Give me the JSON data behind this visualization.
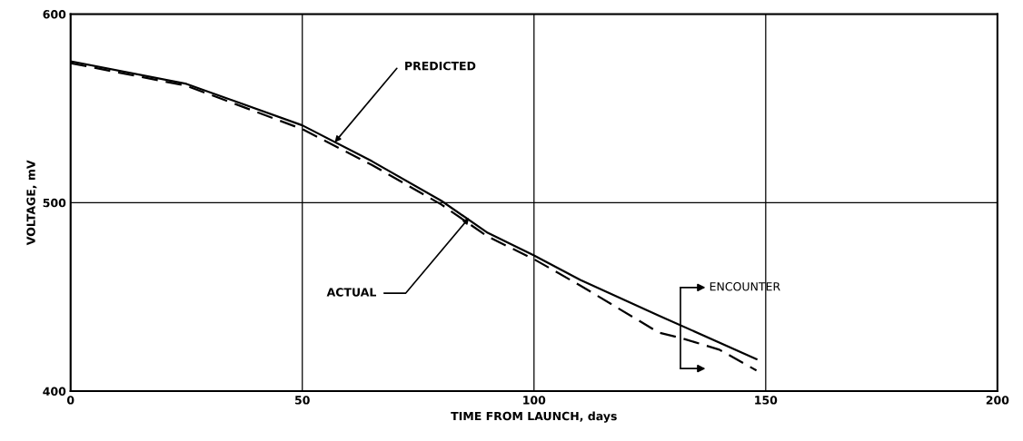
{
  "chart_data": {
    "type": "line",
    "xlabel": "TIME FROM LAUNCH, days",
    "ylabel": "VOLTAGE, mV",
    "xlim": [
      0,
      200
    ],
    "xticks": [
      0,
      50,
      100,
      150,
      200
    ],
    "ylim": [
      400,
      600
    ],
    "yticks": [
      400,
      500,
      600
    ],
    "grid": true,
    "series": [
      {
        "color": "#000000",
        "line_style": "solid",
        "x": [
          0,
          25,
          50,
          65,
          80,
          90,
          100,
          110,
          127,
          148
        ],
        "values": [
          575,
          563,
          541,
          522,
          501,
          484,
          472,
          459,
          440,
          417
        ]
      },
      {
        "color": "#000000",
        "line_style": "dashed",
        "x": [
          0,
          25,
          50,
          65,
          80,
          90,
          100,
          110,
          127,
          132,
          140,
          148
        ],
        "values": [
          574,
          562,
          539,
          520,
          499,
          482,
          470,
          456,
          431,
          428,
          422,
          411
        ]
      }
    ],
    "annotations": [
      {
        "text": "PREDICTED",
        "x": 57,
        "y": 532
      },
      {
        "text": "ACTUAL",
        "x": 86,
        "y": 492
      },
      "ENCOUNTER"
    ]
  }
}
